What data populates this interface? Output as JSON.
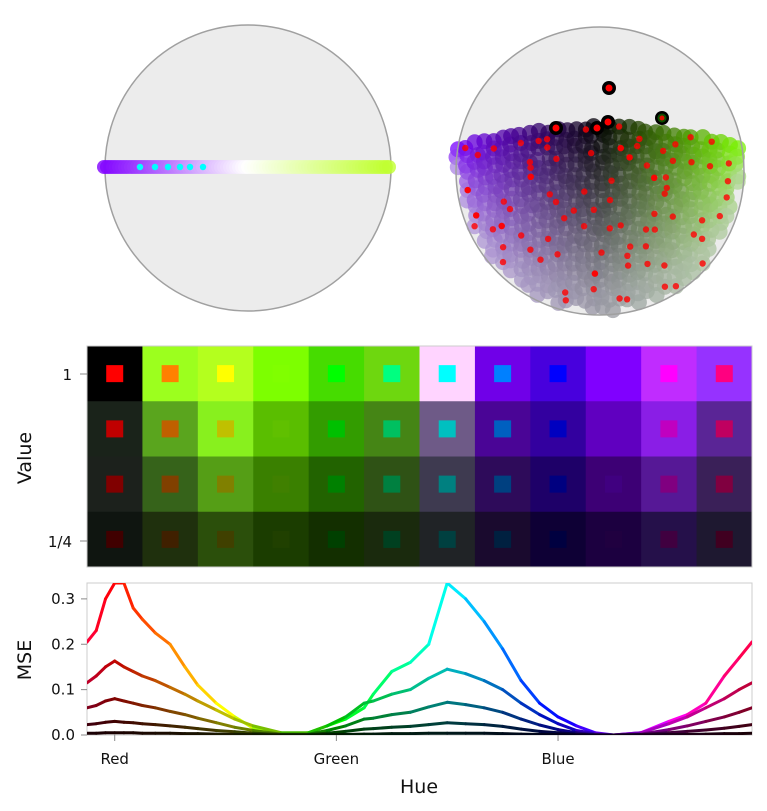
{
  "chart_data": [
    {
      "type": "scatter",
      "panel": "top-left",
      "description_marks": "polar projection disk with a horizontal band of hue-colored points and cyan highlighted points",
      "colors": {
        "disk_fill": "#ececec",
        "disk_stroke": "#a0a0a0",
        "band_left": "#8000ff",
        "band_mid": "#ffffff",
        "band_right": "#c0ff30",
        "highlight": "#00ffff"
      }
    },
    {
      "type": "scatter",
      "panel": "top-right",
      "description_marks": "polar projection disk filled on lower half with hue-colored points and red highlighted points",
      "colors": {
        "disk_fill": "#ececec",
        "disk_stroke": "#a0a0a0",
        "left": "#7800ff",
        "center": "#000000",
        "right": "#80ff00",
        "highlight": "#ff0000"
      }
    },
    {
      "type": "heatmap",
      "ylabel": "Value",
      "ytick_labels": [
        "1",
        "1/4"
      ],
      "rows": [
        {
          "bg": [
            "#000000",
            "#9cff1e",
            "#b4ff1e",
            "#7dff00",
            "#46dc00",
            "#6ed70f",
            "#ffd4ff",
            "#7000e8",
            "#4800dd",
            "#8000ff",
            "#c02cff",
            "#9632ff"
          ],
          "inner": [
            "#ff0000",
            "#ff8000",
            "#ffff00",
            "#80ff00",
            "#00ff00",
            "#00ff80",
            "#00ffff",
            "#0080ff",
            "#0000ff",
            "#8000ff",
            "#ff00ff",
            "#ff0080"
          ]
        },
        {
          "bg": [
            "#1a231a",
            "#5aa51e",
            "#88f01e",
            "#5abe00",
            "#339c00",
            "#458515",
            "#6e5a87",
            "#4a0596",
            "#33009f",
            "#6000c0",
            "#8a1ee6",
            "#5a2596"
          ],
          "inner": [
            "#c00000",
            "#c06000",
            "#c0c000",
            "#60c000",
            "#00c000",
            "#00c060",
            "#00c0c0",
            "#0060c0",
            "#0000c0",
            "#6000c0",
            "#c000c0",
            "#c00060"
          ]
        },
        {
          "bg": [
            "#1c211c",
            "#36631a",
            "#559e16",
            "#3a8000",
            "#226300",
            "#2f5215",
            "#3e3a50",
            "#2e0b5a",
            "#1e0068",
            "#3d0075",
            "#561896",
            "#3a2058"
          ],
          "inner": [
            "#800000",
            "#804000",
            "#808000",
            "#408000",
            "#008000",
            "#008040",
            "#008080",
            "#004080",
            "#000080",
            "#400080",
            "#800080",
            "#800040"
          ]
        },
        {
          "bg": [
            "#0f1510",
            "#1f300d",
            "#2b4f0b",
            "#1b3d00",
            "#132f00",
            "#1a2a0d",
            "#202326",
            "#1a0a2e",
            "#0e0035",
            "#1c0040",
            "#25104a",
            "#1e1830"
          ],
          "inner": [
            "#400000",
            "#402000",
            "#404000",
            "#204000",
            "#004000",
            "#004020",
            "#004040",
            "#002040",
            "#000040",
            "#200040",
            "#400040",
            "#400020"
          ]
        }
      ]
    },
    {
      "type": "line",
      "xlabel": "Hue",
      "ylabel": "MSE",
      "xlim": [
        -15,
        345
      ],
      "ylim": [
        0,
        0.335
      ],
      "xticks": [
        {
          "value": 0,
          "label": "Red"
        },
        {
          "value": 120,
          "label": "Green"
        },
        {
          "value": 240,
          "label": "Blue"
        }
      ],
      "yticks": [
        {
          "value": 0,
          "label": "0.0"
        },
        {
          "value": 0.1,
          "label": "0.1"
        },
        {
          "value": 0.2,
          "label": "0.2"
        },
        {
          "value": 0.3,
          "label": "0.3"
        }
      ],
      "grid": false,
      "line_color": "hue of x, darkened per series",
      "x": [
        -15,
        -10,
        -5,
        0,
        5,
        10,
        15,
        22,
        30,
        38,
        45,
        55,
        65,
        75,
        90,
        105,
        115,
        125,
        135,
        140,
        150,
        160,
        170,
        180,
        190,
        200,
        210,
        220,
        230,
        240,
        250,
        260,
        270,
        285,
        300,
        310,
        320,
        330,
        338,
        345
      ],
      "series": [
        {
          "brightness": 1.0,
          "values": [
            0.205,
            0.23,
            0.3,
            0.34,
            0.34,
            0.28,
            0.255,
            0.225,
            0.2,
            0.15,
            0.11,
            0.07,
            0.04,
            0.015,
            0.0,
            0.005,
            0.02,
            0.035,
            0.06,
            0.09,
            0.14,
            0.16,
            0.2,
            0.36,
            0.3,
            0.25,
            0.19,
            0.12,
            0.07,
            0.04,
            0.02,
            0.005,
            0.0,
            0.005,
            0.03,
            0.045,
            0.07,
            0.13,
            0.17,
            0.205
          ]
        },
        {
          "brightness": 0.75,
          "values": [
            0.115,
            0.13,
            0.15,
            0.163,
            0.15,
            0.14,
            0.13,
            0.12,
            0.105,
            0.09,
            0.075,
            0.055,
            0.035,
            0.02,
            0.005,
            0.005,
            0.02,
            0.04,
            0.07,
            0.075,
            0.09,
            0.1,
            0.125,
            0.145,
            0.135,
            0.12,
            0.1,
            0.07,
            0.045,
            0.025,
            0.01,
            0.003,
            0,
            0.005,
            0.025,
            0.04,
            0.06,
            0.08,
            0.1,
            0.115
          ]
        },
        {
          "brightness": 0.5,
          "values": [
            0.06,
            0.065,
            0.075,
            0.08,
            0.075,
            0.07,
            0.065,
            0.06,
            0.052,
            0.045,
            0.037,
            0.027,
            0.017,
            0.01,
            0.002,
            0.002,
            0.01,
            0.02,
            0.035,
            0.037,
            0.045,
            0.05,
            0.062,
            0.072,
            0.067,
            0.06,
            0.05,
            0.035,
            0.022,
            0.012,
            0.005,
            0.001,
            0,
            0.002,
            0.012,
            0.02,
            0.03,
            0.04,
            0.05,
            0.06
          ]
        },
        {
          "brightness": 0.25,
          "values": [
            0.023,
            0.025,
            0.028,
            0.03,
            0.028,
            0.027,
            0.025,
            0.023,
            0.02,
            0.017,
            0.014,
            0.01,
            0.007,
            0.004,
            0.001,
            0.001,
            0.004,
            0.008,
            0.013,
            0.014,
            0.017,
            0.019,
            0.023,
            0.027,
            0.025,
            0.023,
            0.019,
            0.013,
            0.008,
            0.005,
            0.002,
            0,
            0,
            0.001,
            0.005,
            0.008,
            0.011,
            0.015,
            0.019,
            0.023
          ]
        },
        {
          "brightness": 0.1,
          "values": [
            0.004,
            0.004,
            0.005,
            0.005,
            0.005,
            0.005,
            0.004,
            0.004,
            0.004,
            0.003,
            0.003,
            0.002,
            0.001,
            0.001,
            0,
            0,
            0.001,
            0.001,
            0.002,
            0.002,
            0.003,
            0.003,
            0.004,
            0.004,
            0.004,
            0.004,
            0.003,
            0.002,
            0.001,
            0.001,
            0,
            0,
            0,
            0,
            0.001,
            0.001,
            0.002,
            0.003,
            0.003,
            0.004
          ]
        }
      ]
    }
  ]
}
